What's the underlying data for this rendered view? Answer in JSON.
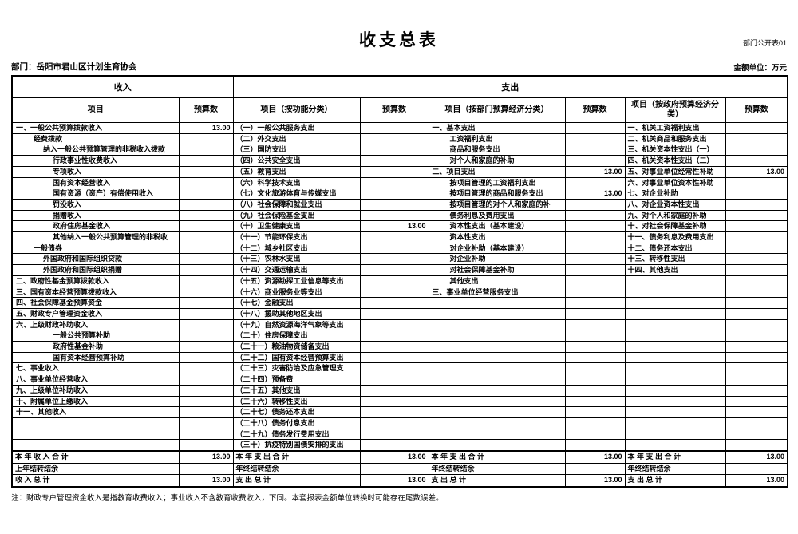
{
  "page": {
    "corner_label": "部门公开表01",
    "title": "收支总表",
    "department": "部门：岳阳市君山区计划生育协会",
    "unit": "金额单位：万元",
    "note": "注：财政专户管理资金收入是指教育收费收入；事业收入不含教育收费收入，下同。本套报表金额单位转换时可能存在尾数误差。"
  },
  "table": {
    "group_headers": {
      "income": "收入",
      "expenditure": "支出"
    },
    "col_headers": [
      "项目",
      "预算数",
      "项目（按功能分类）",
      "预算数",
      "项目（按部门预算经济分类）",
      "预算数",
      "项目（按政府预算经济分类）",
      "预算数"
    ],
    "rows": [
      [
        "一、一般公共预算拨款收入",
        0,
        "13.00",
        "（一）一般公共服务支出",
        "",
        "一、基本支出",
        0,
        "",
        "一、机关工资福利支出",
        ""
      ],
      [
        "经费拨款",
        1,
        "",
        "（二）外交支出",
        "",
        "工资福利支出",
        1,
        "",
        "二、机关商品和服务支出",
        ""
      ],
      [
        "纳入一般公共预算管理的非税收入拨款",
        2,
        "",
        "（三）国防支出",
        "",
        "商品和服务支出",
        1,
        "",
        "三、机关资本性支出（一）",
        ""
      ],
      [
        "行政事业性收费收入",
        3,
        "",
        "（四）公共安全支出",
        "",
        "对个人和家庭的补助",
        1,
        "",
        "四、机关资本性支出（二）",
        ""
      ],
      [
        "专项收入",
        3,
        "",
        "（五）教育支出",
        "",
        "二、项目支出",
        0,
        "13.00",
        "五、对事业单位经常性补助",
        "13.00"
      ],
      [
        "国有资本经营收入",
        3,
        "",
        "（六）科学技术支出",
        "",
        "按项目管理的工资福利支出",
        1,
        "",
        "六、对事业单位资本性补助",
        ""
      ],
      [
        "国有资源（资产）有偿使用收入",
        3,
        "",
        "（七）文化旅游体育与传媒支出",
        "",
        "按项目管理的商品和服务支出",
        1,
        "13.00",
        "七、对企业补助",
        ""
      ],
      [
        "罚没收入",
        3,
        "",
        "（八）社会保障和就业支出",
        "",
        "按项目管理的对个人和家庭的补",
        1,
        "",
        "八、对企业资本性支出",
        ""
      ],
      [
        "捐赠收入",
        3,
        "",
        "（九）社会保险基金支出",
        "",
        "债务利息及费用支出",
        1,
        "",
        "九、对个人和家庭的补助",
        ""
      ],
      [
        "政府住房基金收入",
        3,
        "",
        "（十）卫生健康支出",
        "13.00",
        "资本性支出（基本建设）",
        1,
        "",
        "十、对社会保障基金补助",
        ""
      ],
      [
        "其他纳入一般公共预算管理的非税收",
        3,
        "",
        "（十一）节能环保支出",
        "",
        "资本性支出",
        1,
        "",
        "十一、债务利息及费用支出",
        ""
      ],
      [
        "一般债券",
        1,
        "",
        "（十二）城乡社区支出",
        "",
        "对企业补助（基本建设）",
        1,
        "",
        "十二、债务还本支出",
        ""
      ],
      [
        "外国政府和国际组织贷款",
        2,
        "",
        "（十三）农林水支出",
        "",
        "对企业补助",
        1,
        "",
        "十三、转移性支出",
        ""
      ],
      [
        "外国政府和国际组织捐赠",
        2,
        "",
        "（十四）交通运输支出",
        "",
        "对社会保障基金补助",
        1,
        "",
        "十四、其他支出",
        ""
      ],
      [
        "二、政府性基金预算拨款收入",
        0,
        "",
        "（十五）资源勘探工业信息等支出",
        "",
        "其他支出",
        1,
        "",
        "",
        ""
      ],
      [
        "三、国有资本经营预算拨款收入",
        0,
        "",
        "（十六）商业服务业等支出",
        "",
        "三、事业单位经营服务支出",
        0,
        "",
        "",
        ""
      ],
      [
        "四、社会保障基金预算资金",
        0,
        "",
        "（十七）金融支出",
        "",
        "",
        0,
        "",
        "",
        ""
      ],
      [
        "五、财政专户管理资金收入",
        0,
        "",
        "（十八）援助其他地区支出",
        "",
        "",
        0,
        "",
        "",
        ""
      ],
      [
        "六、上级财政补助收入",
        0,
        "",
        "（十九）自然资源海洋气象等支出",
        "",
        "",
        0,
        "",
        "",
        ""
      ],
      [
        "一般公共预算补助",
        3,
        "",
        "（二十）住房保障支出",
        "",
        "",
        0,
        "",
        "",
        ""
      ],
      [
        "政府性基金补助",
        3,
        "",
        "（二十一）粮油物资储备支出",
        "",
        "",
        0,
        "",
        "",
        ""
      ],
      [
        "国有资本经营预算补助",
        3,
        "",
        "（二十二）国有资本经营预算支出",
        "",
        "",
        0,
        "",
        "",
        ""
      ],
      [
        "七、事业收入",
        0,
        "",
        "（二十三）灾害防治及应急管理支",
        "",
        "",
        0,
        "",
        "",
        ""
      ],
      [
        "八、事业单位经营收入",
        0,
        "",
        "（二十四）预备费",
        "",
        "",
        0,
        "",
        "",
        ""
      ],
      [
        "九、上级单位补助收入",
        0,
        "",
        "（二十五）其他支出",
        "",
        "",
        0,
        "",
        "",
        ""
      ],
      [
        "十、附属单位上缴收入",
        0,
        "",
        "（二十六）转移性支出",
        "",
        "",
        0,
        "",
        "",
        ""
      ],
      [
        "十一、其他收入",
        0,
        "",
        "（二十七）债务还本支出",
        "",
        "",
        0,
        "",
        "",
        ""
      ],
      [
        "",
        0,
        "",
        "（二十八）债务付息支出",
        "",
        "",
        0,
        "",
        "",
        ""
      ],
      [
        "",
        0,
        "",
        "（二十九）债务发行费用支出",
        "",
        "",
        0,
        "",
        "",
        ""
      ],
      [
        "",
        0,
        "",
        "（三十）抗疫特别国债安排的支出",
        "",
        "",
        0,
        "",
        "",
        ""
      ]
    ],
    "summary_rows": [
      [
        "本 年 收 入 合 计",
        "13.00",
        "本 年 支 出 合 计",
        "13.00",
        "本 年 支 出 合 计",
        "13.00",
        "本 年 支 出 合 计",
        "13.00"
      ],
      [
        "上年结转结余",
        "",
        "年终结转结余",
        "",
        "年终结转结余",
        "",
        "年终结转结余",
        ""
      ],
      [
        "收 入 总 计",
        "13.00",
        "支 出 总 计",
        "13.00",
        "支 出 总 计",
        "13.00",
        "支 出 总 计",
        "13.00"
      ]
    ]
  }
}
